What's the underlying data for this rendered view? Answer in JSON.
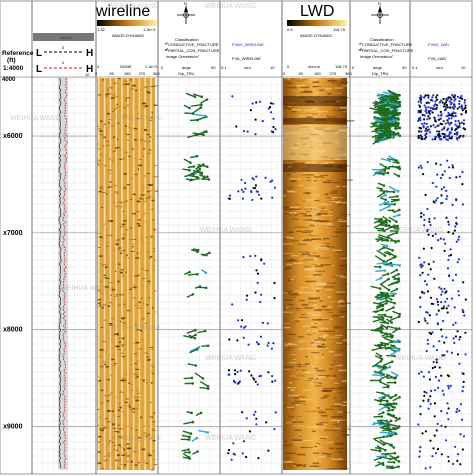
{
  "reference": {
    "label_line1": "Reference",
    "label_line2": "(ft)",
    "scale": "1:4000"
  },
  "depth_ticks": [
    "6000",
    "7000",
    "8000",
    "9000"
  ],
  "depth_range": [
    5400,
    9450
  ],
  "first_depth_label": "4000",
  "tracks": {
    "curve": {
      "name": "DDCAL",
      "marker_left": "L",
      "marker_right": "H",
      "values": [
        "0",
        "0",
        "10"
      ]
    },
    "wireline": {
      "title": "wireline",
      "scale_left": "1.32",
      "scale_right": "1.3e+3",
      "image_label": "IMAGE.DYNAMIC",
      "color_min": "0",
      "color_max": "NONE",
      "ticks": [
        "0",
        "90",
        "180",
        "270",
        "360"
      ]
    },
    "wireline_class": {
      "legend_title": "Classification",
      "legend_items": [
        "CONDUCTIVE_FRACTURE",
        "PARTIAL_CON_FRACTURE"
      ],
      "orientation_label": "Image Orientation°",
      "scale_left": "0",
      "scale_right": "90",
      "unit": "degs",
      "dip_label": "Dip_TRU",
      "compass_label": "N"
    },
    "wireline_aperture": {
      "label_top": "FVAH_WIRELINE",
      "label_bottom": "FVA_WIRELINE",
      "scale_left": "0.1",
      "scale_right": "10",
      "unit": "mm"
    },
    "lwd": {
      "title": "LWD",
      "scale_left": "0.6",
      "scale_right": "118.75",
      "image_label": "IMAGE.DYNAMIC",
      "color_min": "0",
      "color_max": "ohm.m",
      "ticks": [
        "0",
        "90",
        "180",
        "270",
        "360"
      ]
    },
    "lwd_class": {
      "legend_title": "Classification",
      "legend_items": [
        "CONDUCTIVE_FRACTURE",
        "PARTIAL_CON_FRACTURE"
      ],
      "orientation_label": "Image Orientation°",
      "scale_left": "0",
      "scale_right": "90",
      "unit": "degs",
      "dip_label": "Dip_TRU",
      "compass_label": "N"
    },
    "lwd_aperture": {
      "label_top": "FVAH_LWD",
      "label_bottom": "FVA_LWD",
      "scale_left": "0.1",
      "scale_right": "10",
      "unit": "mm"
    }
  },
  "watermark": "WEIHUA WANG",
  "colors": {
    "tadpole_green": "#1f6b1f",
    "tadpole_cyan": "#2aa8d8",
    "aperture_blue": "#1a2fd6",
    "aperture_black": "#000000",
    "curve_red": "#e01010",
    "image_dark": "#3a2208",
    "image_light": "#f0c060"
  }
}
